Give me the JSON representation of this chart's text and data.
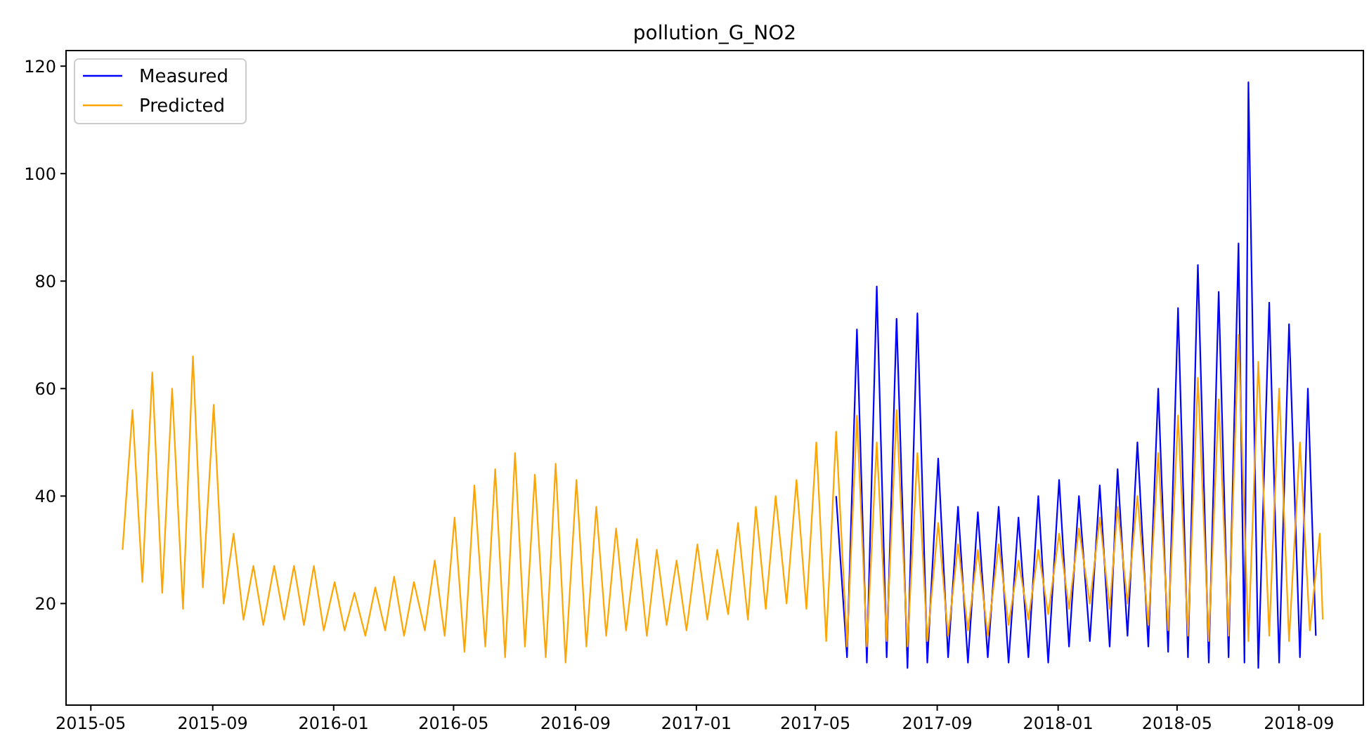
{
  "chart_data": {
    "type": "line",
    "title": "pollution_G_NO2",
    "xlim": [
      "2015-04-06",
      "2018-11-05"
    ],
    "ylim": [
      1.1,
      122.9
    ],
    "xticks": [
      "2015-05",
      "2015-09",
      "2016-01",
      "2016-05",
      "2016-09",
      "2017-01",
      "2017-05",
      "2017-09",
      "2018-01",
      "2018-05",
      "2018-09"
    ],
    "yticks": [
      20,
      40,
      60,
      80,
      100,
      120
    ],
    "grid": false,
    "legend": "top left",
    "line_style": "solid",
    "series": [
      {
        "name": "Measured",
        "color": "#0000ff",
        "x": [
          "2017-05-22",
          "2017-06-02",
          "2017-06-12",
          "2017-06-22",
          "2017-07-02",
          "2017-07-12",
          "2017-07-22",
          "2017-08-02",
          "2017-08-12",
          "2017-08-22",
          "2017-09-02",
          "2017-09-12",
          "2017-09-22",
          "2017-10-02",
          "2017-10-12",
          "2017-10-22",
          "2017-11-02",
          "2017-11-12",
          "2017-11-22",
          "2017-12-02",
          "2017-12-12",
          "2017-12-22",
          "2018-01-02",
          "2018-01-12",
          "2018-01-22",
          "2018-02-02",
          "2018-02-12",
          "2018-02-22",
          "2018-03-02",
          "2018-03-12",
          "2018-03-22",
          "2018-04-02",
          "2018-04-12",
          "2018-04-22",
          "2018-05-02",
          "2018-05-12",
          "2018-05-22",
          "2018-06-02",
          "2018-06-12",
          "2018-06-22",
          "2018-07-02",
          "2018-07-08",
          "2018-07-12",
          "2018-07-22",
          "2018-08-02",
          "2018-08-12",
          "2018-08-22",
          "2018-09-02",
          "2018-09-10",
          "2018-09-18"
        ],
        "values": [
          40,
          10,
          71,
          9,
          79,
          10,
          73,
          8,
          74,
          9,
          47,
          10,
          38,
          9,
          37,
          10,
          38,
          9,
          36,
          10,
          40,
          9,
          43,
          12,
          40,
          13,
          42,
          12,
          45,
          14,
          50,
          12,
          60,
          11,
          75,
          10,
          83,
          9,
          78,
          10,
          87,
          9,
          117,
          8,
          76,
          9,
          72,
          10,
          60,
          14
        ]
      },
      {
        "name": "Predicted",
        "color": "#ffa500",
        "x": [
          "2015-06-02",
          "2015-06-12",
          "2015-06-22",
          "2015-07-02",
          "2015-07-12",
          "2015-07-22",
          "2015-08-02",
          "2015-08-12",
          "2015-08-22",
          "2015-09-02",
          "2015-09-12",
          "2015-09-22",
          "2015-10-02",
          "2015-10-12",
          "2015-10-22",
          "2015-11-02",
          "2015-11-12",
          "2015-11-22",
          "2015-12-02",
          "2015-12-12",
          "2015-12-22",
          "2016-01-02",
          "2016-01-12",
          "2016-01-22",
          "2016-02-02",
          "2016-02-12",
          "2016-02-22",
          "2016-03-02",
          "2016-03-12",
          "2016-03-22",
          "2016-04-02",
          "2016-04-12",
          "2016-04-22",
          "2016-05-02",
          "2016-05-12",
          "2016-05-22",
          "2016-06-02",
          "2016-06-12",
          "2016-06-22",
          "2016-07-02",
          "2016-07-12",
          "2016-07-22",
          "2016-08-02",
          "2016-08-12",
          "2016-08-22",
          "2016-09-02",
          "2016-09-12",
          "2016-09-22",
          "2016-10-02",
          "2016-10-12",
          "2016-10-22",
          "2016-11-02",
          "2016-11-12",
          "2016-11-22",
          "2016-12-02",
          "2016-12-12",
          "2016-12-22",
          "2017-01-02",
          "2017-01-12",
          "2017-01-22",
          "2017-02-02",
          "2017-02-12",
          "2017-02-22",
          "2017-03-02",
          "2017-03-12",
          "2017-03-22",
          "2017-04-02",
          "2017-04-12",
          "2017-04-22",
          "2017-05-02",
          "2017-05-12",
          "2017-05-22",
          "2017-06-02",
          "2017-06-12",
          "2017-06-22",
          "2017-07-02",
          "2017-07-12",
          "2017-07-22",
          "2017-08-02",
          "2017-08-12",
          "2017-08-22",
          "2017-09-02",
          "2017-09-12",
          "2017-09-22",
          "2017-10-02",
          "2017-10-12",
          "2017-10-22",
          "2017-11-02",
          "2017-11-12",
          "2017-11-22",
          "2017-12-02",
          "2017-12-12",
          "2017-12-22",
          "2018-01-02",
          "2018-01-12",
          "2018-01-22",
          "2018-02-02",
          "2018-02-12",
          "2018-02-22",
          "2018-03-02",
          "2018-03-12",
          "2018-03-22",
          "2018-04-02",
          "2018-04-12",
          "2018-04-22",
          "2018-05-02",
          "2018-05-12",
          "2018-05-22",
          "2018-06-02",
          "2018-06-12",
          "2018-06-22",
          "2018-07-02",
          "2018-07-12",
          "2018-07-22",
          "2018-08-02",
          "2018-08-12",
          "2018-08-22",
          "2018-09-02",
          "2018-09-12",
          "2018-09-22",
          "2018-09-25"
        ],
        "values": [
          30,
          56,
          24,
          63,
          22,
          60,
          19,
          66,
          23,
          57,
          20,
          33,
          17,
          27,
          16,
          27,
          17,
          27,
          16,
          27,
          15,
          24,
          15,
          22,
          14,
          23,
          15,
          25,
          14,
          24,
          15,
          28,
          14,
          36,
          11,
          42,
          12,
          45,
          10,
          48,
          12,
          44,
          10,
          46,
          9,
          43,
          12,
          38,
          14,
          34,
          15,
          32,
          14,
          30,
          16,
          28,
          15,
          31,
          17,
          30,
          18,
          35,
          17,
          38,
          19,
          40,
          20,
          43,
          19,
          50,
          13,
          52,
          12,
          55,
          12,
          50,
          13,
          56,
          12,
          48,
          13,
          35,
          14,
          31,
          15,
          30,
          14,
          31,
          16,
          28,
          17,
          30,
          18,
          33,
          19,
          34,
          20,
          36,
          19,
          38,
          20,
          40,
          16,
          48,
          15,
          55,
          14,
          62,
          13,
          58,
          14,
          70,
          13,
          65,
          14,
          60,
          13,
          50,
          15,
          33,
          17
        ]
      }
    ]
  }
}
